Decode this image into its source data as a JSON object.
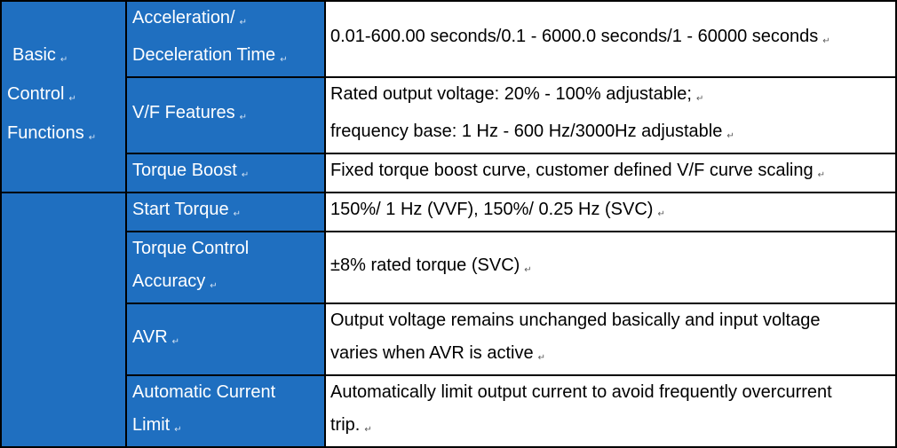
{
  "group": {
    "lines": [
      "Basic",
      "Control",
      "Functions"
    ],
    "mark": "↵"
  },
  "rows": [
    {
      "feature": [
        "Acceleration/",
        "Deceleration Time"
      ],
      "value": [
        "0.01-600.00 seconds/0.1 - 6000.0 seconds/1 - 60000 seconds"
      ]
    },
    {
      "feature": [
        "V/F Features"
      ],
      "value": [
        "Rated output voltage: 20% - 100%   adjustable;",
        "frequency base: 1 Hz - 600 Hz/3000Hz   adjustable"
      ]
    },
    {
      "feature": [
        "Torque Boost"
      ],
      "value": [
        "Fixed torque boost curve, customer defined V/F curve scaling"
      ]
    },
    {
      "feature": [
        "Start Torque"
      ],
      "value": [
        "150%/ 1 Hz (VVF), 150%/ 0.25 Hz (SVC)"
      ]
    },
    {
      "feature": [
        "Torque Control",
        "Accuracy"
      ],
      "value": [
        "±8% rated torque (SVC)"
      ]
    },
    {
      "feature": [
        "AVR"
      ],
      "value": [
        "Output voltage remains unchanged basically and input voltage",
        "varies when AVR is active"
      ]
    },
    {
      "feature": [
        "Automatic Current",
        "Limit"
      ],
      "value": [
        "Automatically limit output current to avoid frequently overcurrent",
        "trip."
      ]
    }
  ],
  "colors": {
    "header_blue": "#1f6fc0",
    "border": "#000000",
    "value_bg": "#ffffff"
  }
}
